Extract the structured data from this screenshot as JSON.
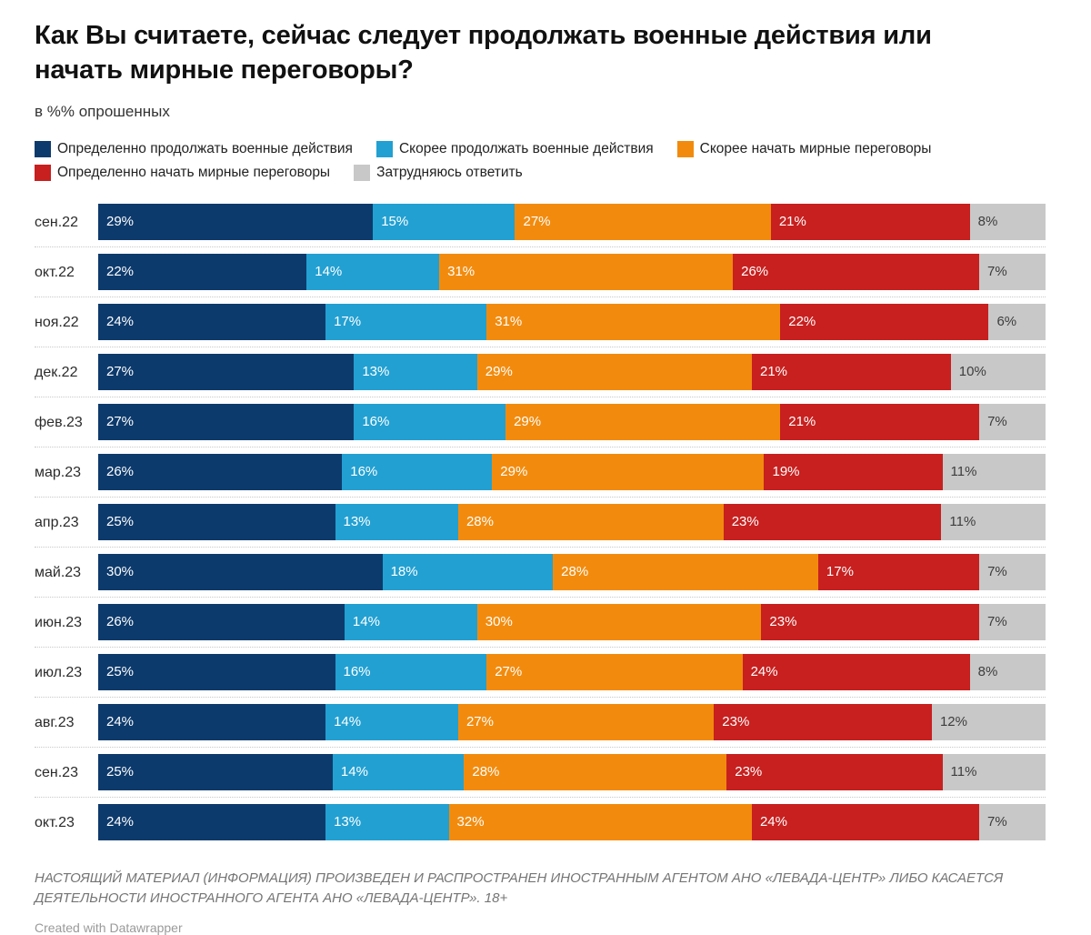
{
  "header": {
    "title": "Как Вы считаете, сейчас следует продолжать военные действия или начать мирные переговоры?",
    "subtitle": "в %% опрошенных"
  },
  "footer": {
    "foreign_agent_note": "НАСТОЯЩИЙ МАТЕРИАЛ (ИНФОРМАЦИЯ) ПРОИЗВЕДЕН И РАСПРОСТРАНЕН ИНОСТРАННЫМ АГЕНТОМ АНО «ЛЕВАДА-ЦЕНТР» ЛИБО КАСАЕТСЯ ДЕЯТЕЛЬНОСТИ ИНОСТРАННОГО АГЕНТА АНО «ЛЕВАДА-ЦЕНТР». 18+",
    "attribution": "Created with Datawrapper"
  },
  "chart_data": {
    "type": "bar",
    "stacked": true,
    "orientation": "horizontal",
    "unit": "%",
    "value_suffix": "%",
    "legend_position": "top",
    "grid": false,
    "xlim": [
      0,
      100
    ],
    "title": "Как Вы считаете, сейчас следует продолжать военные действия или начать мирные переговоры?",
    "subtitle": "в %% опрошенных",
    "categories": [
      "сен.22",
      "окт.22",
      "ноя.22",
      "дек.22",
      "фев.23",
      "мар.23",
      "апр.23",
      "май.23",
      "июн.23",
      "июл.23",
      "авг.23",
      "сен.23",
      "окт.23"
    ],
    "series": [
      {
        "name": "Определенно продолжать военные действия",
        "color": "#0d3a6c",
        "label_color": "#ffffff",
        "values": [
          29,
          22,
          24,
          27,
          27,
          26,
          25,
          30,
          26,
          25,
          24,
          25,
          24
        ]
      },
      {
        "name": "Скорее продолжать военные действия",
        "color": "#22a0d2",
        "label_color": "#ffffff",
        "values": [
          15,
          14,
          17,
          13,
          16,
          16,
          13,
          18,
          14,
          16,
          14,
          14,
          13
        ]
      },
      {
        "name": "Скорее начать мирные переговоры",
        "color": "#f28b0d",
        "label_color": "#ffffff",
        "values": [
          27,
          31,
          31,
          29,
          29,
          29,
          28,
          28,
          30,
          27,
          27,
          28,
          32
        ]
      },
      {
        "name": "Определенно начать мирные переговоры",
        "color": "#c7201f",
        "label_color": "#ffffff",
        "values": [
          21,
          26,
          22,
          21,
          21,
          19,
          23,
          17,
          23,
          24,
          23,
          23,
          24
        ]
      },
      {
        "name": "Затрудняюсь ответить",
        "color": "#c8c8c8",
        "label_color": "#3d3d3d",
        "values": [
          8,
          7,
          6,
          10,
          7,
          11,
          11,
          7,
          7,
          8,
          12,
          11,
          7
        ]
      }
    ]
  }
}
